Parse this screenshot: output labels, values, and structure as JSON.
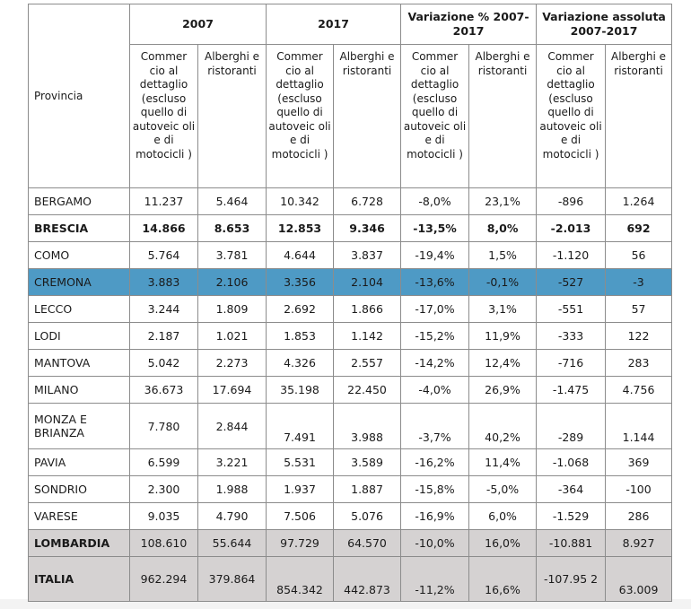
{
  "header": {
    "provincia": "Provincia",
    "groups": [
      "2007",
      "2017",
      "Variazione % 2007-2017",
      "Variazione assoluta 2007-2017"
    ],
    "sub_commercio": "Commer cio al dettaglio (escluso quello di autoveic oli e di motocicli )",
    "sub_alberghi": "Alberghi e ristoranti"
  },
  "rows": [
    {
      "name": "BERGAMO",
      "c2007": "11.237",
      "a2007": "5.464",
      "c2017": "10.342",
      "a2017": "6.728",
      "cpct": "-8,0%",
      "apct": "23,1%",
      "cabs": "-896",
      "aabs": "1.264"
    },
    {
      "name": "BRESCIA",
      "c2007": "14.866",
      "a2007": "8.653",
      "c2017": "12.853",
      "a2017": "9.346",
      "cpct": "-13,5%",
      "apct": "8,0%",
      "cabs": "-2.013",
      "aabs": "692"
    },
    {
      "name": "COMO",
      "c2007": "5.764",
      "a2007": "3.781",
      "c2017": "4.644",
      "a2017": "3.837",
      "cpct": "-19,4%",
      "apct": "1,5%",
      "cabs": "-1.120",
      "aabs": "56"
    },
    {
      "name": "CREMONA",
      "c2007": "3.883",
      "a2007": "2.106",
      "c2017": "3.356",
      "a2017": "2.104",
      "cpct": "-13,6%",
      "apct": "-0,1%",
      "cabs": "-527",
      "aabs": "-3"
    },
    {
      "name": "LECCO",
      "c2007": "3.244",
      "a2007": "1.809",
      "c2017": "2.692",
      "a2017": "1.866",
      "cpct": "-17,0%",
      "apct": "3,1%",
      "cabs": "-551",
      "aabs": "57"
    },
    {
      "name": "LODI",
      "c2007": "2.187",
      "a2007": "1.021",
      "c2017": "1.853",
      "a2017": "1.142",
      "cpct": "-15,2%",
      "apct": "11,9%",
      "cabs": "-333",
      "aabs": "122"
    },
    {
      "name": "MANTOVA",
      "c2007": "5.042",
      "a2007": "2.273",
      "c2017": "4.326",
      "a2017": "2.557",
      "cpct": "-14,2%",
      "apct": "12,4%",
      "cabs": "-716",
      "aabs": "283"
    },
    {
      "name": "MILANO",
      "c2007": "36.673",
      "a2007": "17.694",
      "c2017": "35.198",
      "a2017": "22.450",
      "cpct": "-4,0%",
      "apct": "26,9%",
      "cabs": "-1.475",
      "aabs": "4.756"
    },
    {
      "name": "MONZA E BRIANZA",
      "c2007": "7.780",
      "a2007": "2.844",
      "c2017": "7.491",
      "a2017": "3.988",
      "cpct": "-3,7%",
      "apct": "40,2%",
      "cabs": "-289",
      "aabs": "1.144"
    },
    {
      "name": "PAVIA",
      "c2007": "6.599",
      "a2007": "3.221",
      "c2017": "5.531",
      "a2017": "3.589",
      "cpct": "-16,2%",
      "apct": "11,4%",
      "cabs": "-1.068",
      "aabs": "369"
    },
    {
      "name": "SONDRIO",
      "c2007": "2.300",
      "a2007": "1.988",
      "c2017": "1.937",
      "a2017": "1.887",
      "cpct": "-15,8%",
      "apct": "-5,0%",
      "cabs": "-364",
      "aabs": "-100"
    },
    {
      "name": "VARESE",
      "c2007": "9.035",
      "a2007": "4.790",
      "c2017": "7.506",
      "a2017": "5.076",
      "cpct": "-16,9%",
      "apct": "6,0%",
      "cabs": "-1.529",
      "aabs": "286"
    },
    {
      "name": "LOMBARDIA",
      "c2007": "108.610",
      "a2007": "55.644",
      "c2017": "97.729",
      "a2017": "64.570",
      "cpct": "-10,0%",
      "apct": "16,0%",
      "cabs": "-10.881",
      "aabs": "8.927"
    },
    {
      "name": "ITALIA",
      "c2007": "962.294",
      "a2007": "379.864",
      "c2017": "854.342",
      "a2017": "442.873",
      "cpct": "-11,2%",
      "apct": "16,6%",
      "cabs": "-107.95 2",
      "aabs": "63.009"
    }
  ],
  "colors": {
    "highlight": "#4e9ac5",
    "total_bg": "#d5d2d2",
    "border": "#8c8c8c"
  }
}
